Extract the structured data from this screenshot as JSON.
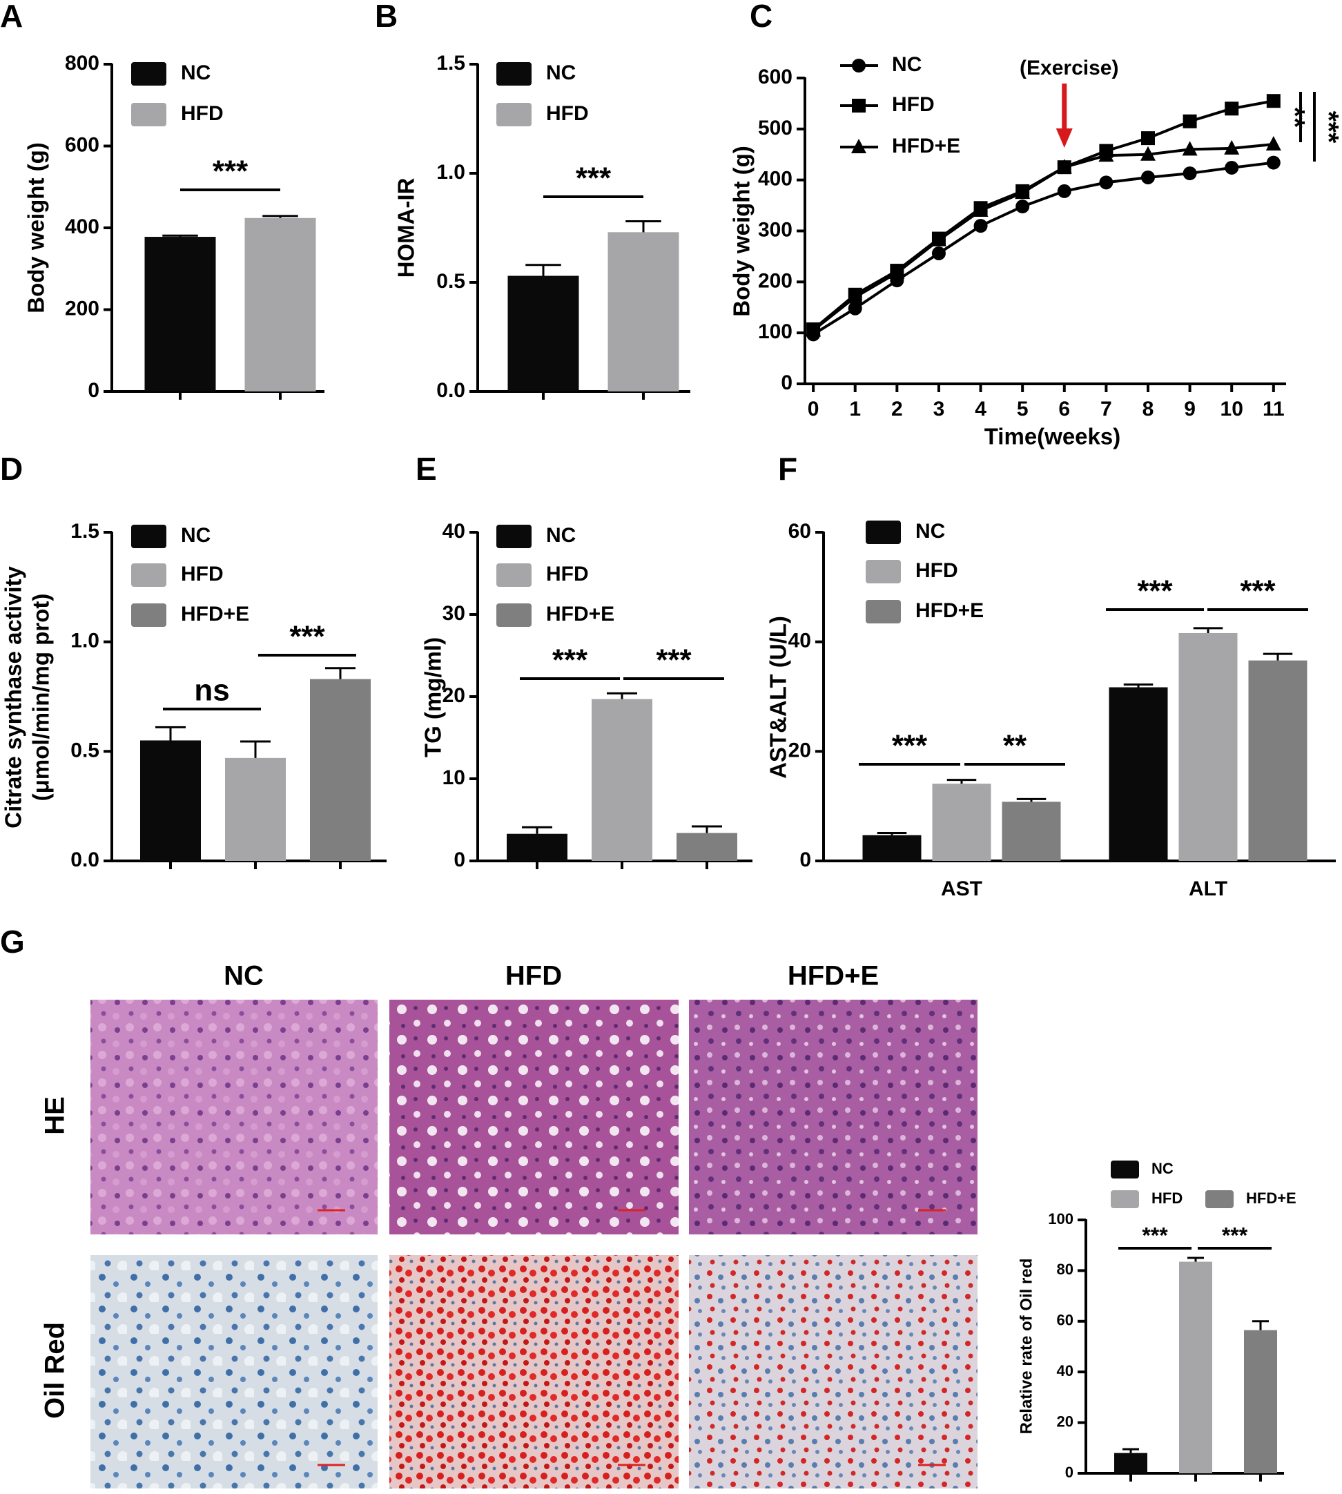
{
  "chart_data": [
    {
      "panel": "A",
      "type": "bar",
      "y_label": "Body weight (g)",
      "categories": [
        "NC",
        "HFD"
      ],
      "values": [
        378,
        424
      ],
      "errors": [
        3,
        5
      ],
      "colors": [
        "#0a0a0a",
        "#a6a6a8"
      ],
      "ylim": [
        0,
        800
      ],
      "yticks": [
        0,
        200,
        400,
        600,
        800
      ],
      "annotations": [
        "***"
      ]
    },
    {
      "panel": "B",
      "type": "bar",
      "y_label": "HOMA-IR",
      "categories": [
        "NC",
        "HFD"
      ],
      "values": [
        0.53,
        0.73
      ],
      "errors": [
        0.05,
        0.05
      ],
      "colors": [
        "#0a0a0a",
        "#a6a6a8"
      ],
      "ylim": [
        0,
        1.5
      ],
      "yticks": [
        {
          "value": 0,
          "label": "0.0"
        },
        0.5,
        {
          "value": 1,
          "label": "1.0"
        },
        1.5
      ],
      "annotations": [
        "***"
      ]
    },
    {
      "panel": "C",
      "type": "line",
      "y_label": "Body weight (g)",
      "x_label": "Time(weeks)",
      "x": [
        0,
        1,
        2,
        3,
        4,
        5,
        6,
        7,
        8,
        9,
        10,
        11
      ],
      "series": [
        {
          "name": "NC",
          "color": "#000000",
          "marker": "circle",
          "values": [
            97,
            148,
            203,
            256,
            310,
            348,
            378,
            395,
            405,
            413,
            424,
            434
          ]
        },
        {
          "name": "HFD",
          "color": "#000000",
          "marker": "square",
          "values": [
            107,
            175,
            222,
            285,
            345,
            378,
            425,
            457,
            482,
            515,
            540,
            555
          ]
        },
        {
          "name": "HFD+E",
          "color": "#000000",
          "marker": "triangle",
          "values": [
            105,
            170,
            218,
            282,
            340,
            375,
            425,
            448,
            450,
            460,
            462,
            470
          ]
        }
      ],
      "xlim": [
        -0.2,
        11.3
      ],
      "xticks": [
        0,
        1,
        2,
        3,
        4,
        5,
        6,
        7,
        8,
        9,
        10,
        11
      ],
      "ylim": [
        0,
        600
      ],
      "yticks": [
        0,
        100,
        200,
        300,
        400,
        500,
        600
      ],
      "exercise": {
        "label": "(Exercise)",
        "x": 6,
        "color": "#d7191c"
      },
      "annotations": [
        "**",
        "***"
      ]
    },
    {
      "panel": "D",
      "type": "bar",
      "y_label": [
        "Citrate synthase activity",
        "(μmol/min/mg prot)"
      ],
      "categories": [
        "NC",
        "HFD",
        "HFD+E"
      ],
      "values": [
        0.55,
        0.47,
        0.83
      ],
      "errors": [
        0.06,
        0.075,
        0.05
      ],
      "colors": [
        "#0a0a0a",
        "#a6a6a8",
        "#7f7f7f"
      ],
      "ylim": [
        0,
        1.5
      ],
      "yticks": [
        {
          "value": 0,
          "label": "0.0"
        },
        0.5,
        {
          "value": 1,
          "label": "1.0"
        },
        1.5
      ],
      "annotations": [
        "ns",
        "***"
      ]
    },
    {
      "panel": "E",
      "type": "bar",
      "y_label": "TG (mg/ml)",
      "categories": [
        "NC",
        "HFD",
        "HFD+E"
      ],
      "values": [
        3.3,
        19.7,
        3.4
      ],
      "errors": [
        0.8,
        0.7,
        0.8
      ],
      "colors": [
        "#0a0a0a",
        "#a6a6a8",
        "#7f7f7f"
      ],
      "ylim": [
        0,
        40
      ],
      "yticks": [
        0,
        10,
        20,
        30,
        40
      ],
      "annotations": [
        "***",
        "***"
      ]
    },
    {
      "panel": "F",
      "type": "grouped_bar",
      "y_label": "AST&ALT (U/L)",
      "categories": [
        "AST",
        "ALT"
      ],
      "series": [
        {
          "name": "NC",
          "color": "#0a0a0a",
          "values": [
            4.7,
            31.7
          ],
          "errors": [
            0.4,
            0.5
          ]
        },
        {
          "name": "HFD",
          "color": "#a6a6a8",
          "values": [
            14.1,
            41.6
          ],
          "errors": [
            0.7,
            0.9
          ]
        },
        {
          "name": "HFD+E",
          "color": "#7f7f7f",
          "values": [
            10.8,
            36.6
          ],
          "errors": [
            0.5,
            1.2
          ]
        }
      ],
      "ylim": [
        0,
        60
      ],
      "yticks": [
        0,
        20,
        40,
        60
      ],
      "annotations": [
        "***",
        "**",
        "***",
        "***"
      ]
    },
    {
      "type": "bar",
      "y_label": "Relative rate of Oil red",
      "categories": [
        "NC",
        "HFD",
        "HFD+E"
      ],
      "values": [
        8,
        83.5,
        56.5
      ],
      "errors": [
        1.5,
        1.5,
        3.5
      ],
      "colors": [
        "#0a0a0a",
        "#a6a6a8",
        "#7f7f7f"
      ],
      "ylim": [
        0,
        100
      ],
      "yticks": [
        0,
        20,
        40,
        60,
        80,
        100
      ],
      "annotations": [
        "***",
        "***"
      ]
    }
  ],
  "figure_g": {
    "panel": "G",
    "columns": [
      "NC",
      "HFD",
      "HFD+E"
    ],
    "rows": [
      "HE",
      "Oil Red"
    ]
  }
}
